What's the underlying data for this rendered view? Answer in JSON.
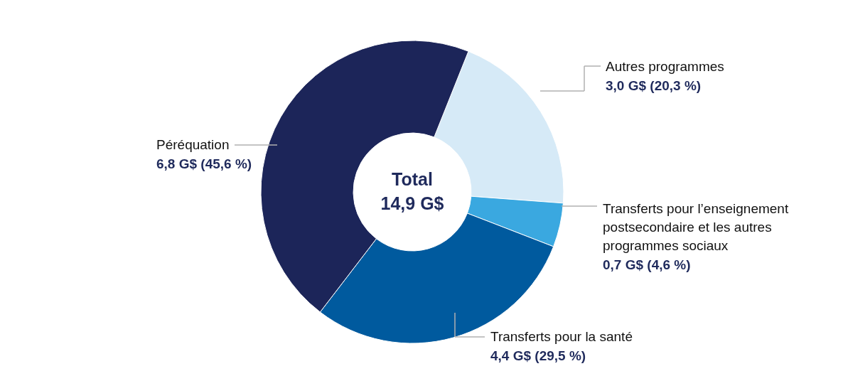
{
  "chart_data": {
    "type": "donut",
    "categories": [
      "Autres programmes",
      "Transferts pour l’enseignement postsecondaire et les autres programmes sociaux",
      "Transferts pour la santé",
      "Péréquation"
    ],
    "values": [
      3.0,
      0.7,
      4.4,
      6.8
    ],
    "colors": [
      "#d6eaf7",
      "#3aa8e0",
      "#005a9e",
      "#1c2559"
    ],
    "value_labels": [
      "3,0 G$ (20,3 %)",
      "0,7 G$ (4,6 %)",
      "4,4 G$ (29,5 %)",
      "6,8 G$ (45,6 %)"
    ],
    "annotations": [
      "Total",
      "14,9 G$"
    ]
  }
}
